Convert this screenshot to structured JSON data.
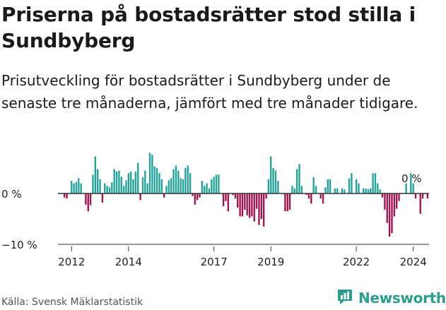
{
  "header": {
    "title": "Priserna på bostadsrätter stod stilla i Sundbyberg",
    "subtitle": "Prisutveckling för bostadsrätter i Sundbyberg under de senaste tre månaderna, jämfört med tre månader tidigare."
  },
  "footer": {
    "source": "Källa: Svensk Mäklarstatistik",
    "brand": "Newsworthy"
  },
  "colors": {
    "positive": "#21a39a",
    "negative": "#a3124f",
    "axis": "#333333"
  },
  "chart_data": {
    "type": "bar",
    "title": "Priserna på bostadsrätter stod stilla i Sundbyberg",
    "xlabel": "",
    "ylabel": "",
    "ylim": [
      -10,
      8
    ],
    "y_ticks": [
      0,
      -10
    ],
    "y_tick_labels": [
      "0 %",
      "−10 %"
    ],
    "x_ticks": [
      2012,
      2014,
      2017,
      2019,
      2022,
      2024
    ],
    "x_tick_labels": [
      "2012",
      "2014",
      "2017",
      "2019",
      "2022",
      "2024"
    ],
    "start": "2011-10",
    "frequency": "monthly",
    "annotation": "0 %",
    "values": [
      -0.8,
      -1.0,
      0,
      2.5,
      2.0,
      2.3,
      3.0,
      2.0,
      0,
      -2.2,
      -3.5,
      -2.3,
      3.7,
      7.3,
      4.8,
      2.8,
      -1.8,
      2.0,
      1.5,
      1.2,
      2.2,
      4.8,
      4.3,
      4.5,
      3.3,
      1.5,
      2.6,
      4.0,
      4.3,
      2.8,
      4.3,
      6.0,
      -1.3,
      3.2,
      4.5,
      2.0,
      8.0,
      7.6,
      5.3,
      5.0,
      4.0,
      2.8,
      -0.8,
      1.5,
      2.6,
      3.0,
      4.8,
      5.5,
      4.5,
      3.0,
      2.8,
      5.0,
      5.5,
      4.0,
      -0.5,
      -2.2,
      -1.3,
      -0.8,
      2.5,
      1.5,
      2.0,
      1.0,
      2.8,
      3.3,
      3.7,
      3.7,
      0,
      -2.5,
      -1.5,
      -3.5,
      0,
      -0.3,
      -1.0,
      -2.8,
      -4.5,
      -4.5,
      -3.2,
      -4.3,
      -4.8,
      -4.5,
      -5.5,
      -3.0,
      -6.2,
      -5.0,
      -6.5,
      -1.0,
      2.8,
      7.3,
      5.0,
      4.5,
      2.5,
      0,
      0,
      -3.5,
      -3.5,
      -3.2,
      1.5,
      1.0,
      4.8,
      5.8,
      1.5,
      0,
      -0.3,
      -1.0,
      -2.0,
      3.2,
      1.5,
      0,
      -1.0,
      -2.0,
      1.2,
      2.8,
      2.8,
      0,
      1.0,
      1.0,
      0,
      1.0,
      0.8,
      0,
      3.0,
      4.0,
      0,
      2.8,
      2.0,
      0,
      1.0,
      1.0,
      0.8,
      1.0,
      4.0,
      4.0,
      2.0,
      0.8,
      -0.8,
      -3.2,
      -5.8,
      -8.5,
      -7.8,
      -4.5,
      -3.0,
      -1.5,
      0,
      0,
      2.0,
      0,
      4.0,
      2.0,
      -1.0,
      0,
      -4.0,
      -1.0,
      0,
      -1.0
    ]
  }
}
